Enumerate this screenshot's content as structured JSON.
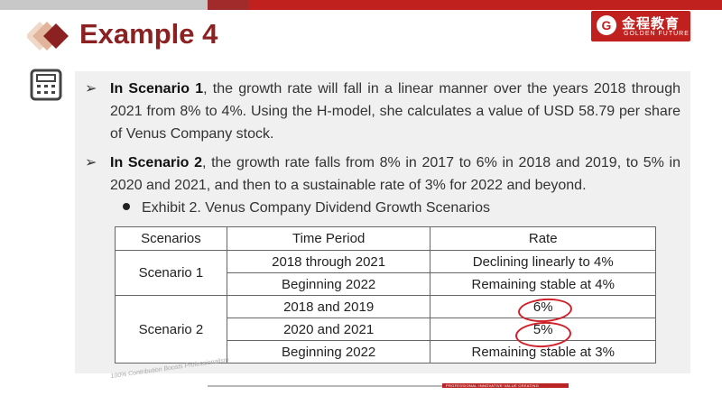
{
  "title": "Example 4",
  "logo": {
    "brand": "金程教育",
    "sub": "GOLDEN FUTURE",
    "emblem": "G"
  },
  "bullets": [
    {
      "bold": "In Scenario 1",
      "rest": ", the growth rate will fall in a linear manner over the years 2018 through 2021 from 8% to 4%. Using the H-model, she calculates a value of USD 58.79 per share of Venus Company stock."
    },
    {
      "bold": "In Scenario 2",
      "rest": ", the growth rate falls from 8% in 2017 to 6% in 2018 and 2019, to 5% in 2020 and 2021, and then to a sustainable rate of 3% for 2022 and beyond."
    }
  ],
  "exhibit": "Exhibit 2.  Venus Company Dividend Growth Scenarios",
  "table": {
    "headers": [
      "Scenarios",
      "Time Period",
      "Rate"
    ],
    "scenario1": "Scenario 1",
    "scenario2": "Scenario 2",
    "rows": [
      {
        "period": "2018 through 2021",
        "rate": "Declining linearly to 4%"
      },
      {
        "period": "Beginning 2022",
        "rate": "Remaining stable at 4%"
      },
      {
        "period": "2018 and 2019",
        "rate": "6%"
      },
      {
        "period": "2020 and 2021",
        "rate": "5%"
      },
      {
        "period": "Beginning 2022",
        "rate": "Remaining stable at 3%"
      }
    ]
  },
  "footer": {
    "tagline": "PROFESSIONAL·INNOVATIVE·VALUE CREATING",
    "stamp": "100% Contribution Boosts Professionalism"
  },
  "colors": {
    "accent": "#8c2121",
    "brand": "#c0211f",
    "annotation": "#d0202a"
  }
}
